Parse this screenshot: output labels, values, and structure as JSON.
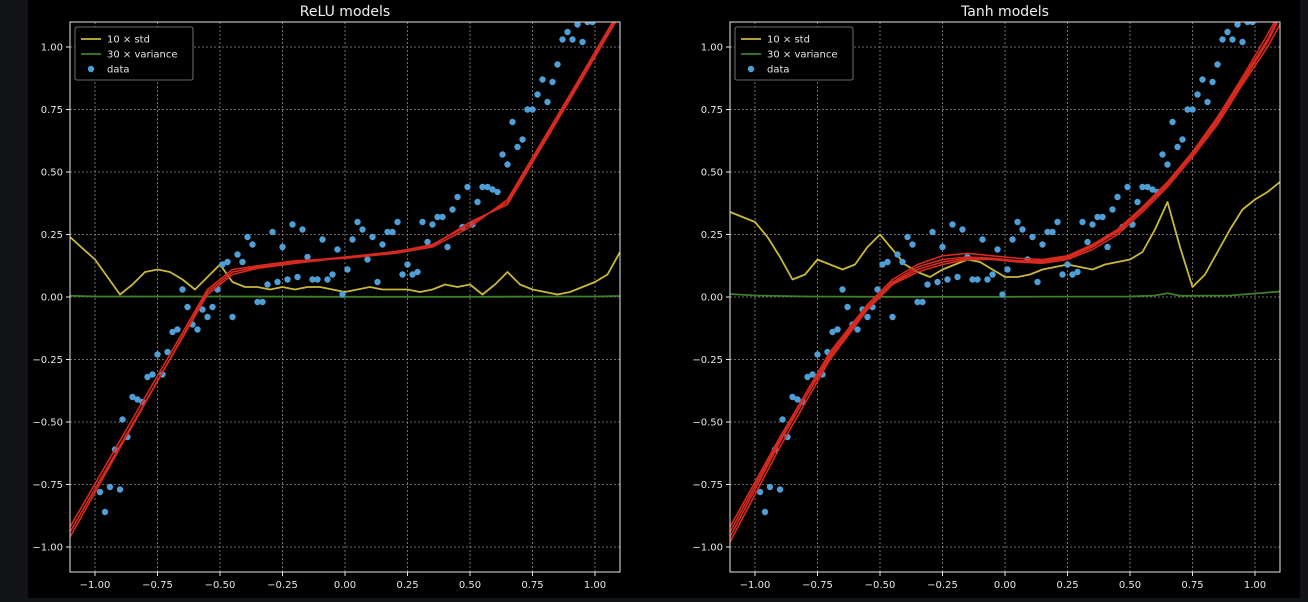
{
  "colors": {
    "background": "#000000",
    "grid": "#8c8c8c",
    "std": "#c9b83a",
    "variance": "#3f7f2a",
    "data": "#4f9ed6",
    "model": "#d62a20"
  },
  "legend": {
    "items": [
      {
        "label": "10 × std",
        "kind": "line",
        "color_key": "std"
      },
      {
        "label": "30 × variance",
        "kind": "line",
        "color_key": "variance"
      },
      {
        "label": "data",
        "kind": "marker",
        "color_key": "data"
      }
    ],
    "location": "upper-left"
  },
  "chart_data": [
    {
      "type": "line",
      "title": "ReLU models",
      "xlim": [
        -1.1,
        1.1
      ],
      "ylim": [
        -1.1,
        1.1
      ],
      "xticks": [
        -1.0,
        -0.75,
        -0.5,
        -0.25,
        0.0,
        0.25,
        0.5,
        0.75,
        1.0
      ],
      "xticklabels": [
        "−1.00",
        "−0.75",
        "−0.50",
        "−0.25",
        "0.00",
        "0.25",
        "0.50",
        "0.75",
        "1.00"
      ],
      "yticks": [
        -1.0,
        -0.75,
        -0.5,
        -0.25,
        0.0,
        0.25,
        0.5,
        0.75,
        1.0
      ],
      "yticklabels": [
        "−1.00",
        "−0.75",
        "−0.50",
        "−0.25",
        "0.00",
        "0.25",
        "0.50",
        "0.75",
        "1.00"
      ],
      "grid": true,
      "series": [
        {
          "name": "10 × std",
          "kind": "line",
          "color_key": "std",
          "x": [
            -1.1,
            -1.0,
            -0.95,
            -0.9,
            -0.85,
            -0.8,
            -0.75,
            -0.7,
            -0.65,
            -0.6,
            -0.55,
            -0.5,
            -0.45,
            -0.4,
            -0.35,
            -0.3,
            -0.25,
            -0.2,
            -0.15,
            -0.1,
            -0.05,
            0.0,
            0.05,
            0.1,
            0.15,
            0.2,
            0.25,
            0.3,
            0.35,
            0.4,
            0.45,
            0.5,
            0.55,
            0.6,
            0.65,
            0.7,
            0.75,
            0.8,
            0.85,
            0.9,
            0.95,
            1.0,
            1.05,
            1.1
          ],
          "y": [
            0.24,
            0.15,
            0.08,
            0.01,
            0.05,
            0.1,
            0.11,
            0.1,
            0.07,
            0.03,
            0.08,
            0.13,
            0.06,
            0.04,
            0.04,
            0.03,
            0.04,
            0.03,
            0.04,
            0.04,
            0.03,
            0.02,
            0.03,
            0.04,
            0.03,
            0.03,
            0.03,
            0.02,
            0.03,
            0.05,
            0.04,
            0.05,
            0.01,
            0.05,
            0.1,
            0.05,
            0.03,
            0.02,
            0.01,
            0.02,
            0.04,
            0.06,
            0.09,
            0.18
          ]
        },
        {
          "name": "30 × variance",
          "kind": "line",
          "color_key": "variance",
          "x": [
            -1.1,
            -1.0,
            -0.5,
            0.0,
            0.5,
            1.0,
            1.1
          ],
          "y": [
            0.005,
            0.002,
            0.002,
            0.001,
            0.001,
            0.002,
            0.004
          ]
        },
        {
          "name": "model 1",
          "kind": "model",
          "color_key": "model",
          "x": [
            -1.1,
            -0.55,
            -0.45,
            -0.35,
            -0.2,
            0.0,
            0.2,
            0.35,
            0.5,
            0.65,
            0.9,
            1.1
          ],
          "y": [
            -0.96,
            0.02,
            0.1,
            0.12,
            0.14,
            0.16,
            0.18,
            0.21,
            0.29,
            0.38,
            0.8,
            1.14
          ]
        },
        {
          "name": "model 2",
          "kind": "model",
          "color_key": "model",
          "x": [
            -1.1,
            -0.55,
            -0.45,
            -0.35,
            -0.2,
            0.0,
            0.2,
            0.35,
            0.5,
            0.65,
            0.9,
            1.1
          ],
          "y": [
            -0.92,
            0.03,
            0.11,
            0.125,
            0.145,
            0.155,
            0.175,
            0.2,
            0.28,
            0.39,
            0.81,
            1.15
          ]
        },
        {
          "name": "model 3",
          "kind": "model",
          "color_key": "model",
          "x": [
            -1.1,
            -0.55,
            -0.45,
            -0.35,
            -0.2,
            0.0,
            0.2,
            0.35,
            0.5,
            0.65,
            0.9,
            1.1
          ],
          "y": [
            -0.94,
            0.01,
            0.09,
            0.115,
            0.135,
            0.158,
            0.182,
            0.205,
            0.3,
            0.37,
            0.79,
            1.13
          ]
        },
        {
          "name": "data",
          "kind": "scatter",
          "color_key": "data",
          "x": [
            -0.98,
            -0.96,
            -0.94,
            -0.92,
            -0.9,
            -0.89,
            -0.87,
            -0.85,
            -0.83,
            -0.81,
            -0.79,
            -0.77,
            -0.75,
            -0.73,
            -0.71,
            -0.69,
            -0.67,
            -0.65,
            -0.63,
            -0.61,
            -0.59,
            -0.57,
            -0.55,
            -0.53,
            -0.51,
            -0.49,
            -0.47,
            -0.45,
            -0.43,
            -0.41,
            -0.39,
            -0.37,
            -0.35,
            -0.33,
            -0.31,
            -0.29,
            -0.27,
            -0.25,
            -0.23,
            -0.21,
            -0.19,
            -0.17,
            -0.15,
            -0.13,
            -0.11,
            -0.09,
            -0.07,
            -0.05,
            -0.03,
            -0.01,
            0.01,
            0.03,
            0.05,
            0.07,
            0.09,
            0.11,
            0.13,
            0.15,
            0.17,
            0.19,
            0.21,
            0.23,
            0.25,
            0.27,
            0.29,
            0.31,
            0.33,
            0.35,
            0.37,
            0.39,
            0.41,
            0.43,
            0.45,
            0.47,
            0.49,
            0.51,
            0.53,
            0.55,
            0.57,
            0.59,
            0.61,
            0.63,
            0.65,
            0.67,
            0.69,
            0.71,
            0.73,
            0.75,
            0.77,
            0.79,
            0.81,
            0.83,
            0.85,
            0.87,
            0.89,
            0.91,
            0.93,
            0.95,
            0.97,
            0.99
          ],
          "y": [
            -0.78,
            -0.86,
            -0.76,
            -0.61,
            -0.77,
            -0.49,
            -0.56,
            -0.4,
            -0.41,
            -0.42,
            -0.32,
            -0.31,
            -0.23,
            -0.31,
            -0.22,
            -0.14,
            -0.13,
            0.03,
            -0.04,
            -0.11,
            -0.13,
            -0.05,
            -0.08,
            -0.04,
            0.03,
            0.13,
            0.14,
            -0.08,
            0.17,
            0.14,
            0.24,
            0.21,
            -0.02,
            -0.02,
            0.05,
            0.26,
            0.06,
            0.2,
            0.07,
            0.29,
            0.08,
            0.27,
            0.16,
            0.07,
            0.07,
            0.23,
            0.07,
            0.09,
            0.19,
            0.01,
            0.11,
            0.23,
            0.3,
            0.27,
            0.15,
            0.24,
            0.06,
            0.21,
            0.26,
            0.26,
            0.3,
            0.09,
            0.13,
            0.09,
            0.1,
            0.3,
            0.22,
            0.29,
            0.32,
            0.32,
            0.2,
            0.35,
            0.4,
            0.28,
            0.44,
            0.29,
            0.38,
            0.44,
            0.44,
            0.43,
            0.42,
            0.57,
            0.53,
            0.7,
            0.6,
            0.63,
            0.75,
            0.75,
            0.81,
            0.87,
            0.78,
            0.86,
            0.93,
            1.03,
            1.06,
            1.03,
            1.09,
            1.02,
            1.1,
            1.1
          ]
        }
      ]
    },
    {
      "type": "line",
      "title": "Tanh models",
      "xlim": [
        -1.1,
        1.1
      ],
      "ylim": [
        -1.1,
        1.1
      ],
      "xticks": [
        -1.0,
        -0.75,
        -0.5,
        -0.25,
        0.0,
        0.25,
        0.5,
        0.75,
        1.0
      ],
      "xticklabels": [
        "−1.00",
        "−0.75",
        "−0.50",
        "−0.25",
        "0.00",
        "0.25",
        "0.50",
        "0.75",
        "1.00"
      ],
      "yticks": [
        -1.0,
        -0.75,
        -0.5,
        -0.25,
        0.0,
        0.25,
        0.5,
        0.75,
        1.0
      ],
      "yticklabels": [
        "−1.00",
        "−0.75",
        "−0.50",
        "−0.25",
        "0.00",
        "0.25",
        "0.50",
        "0.75",
        "1.00"
      ],
      "grid": true,
      "series": [
        {
          "name": "10 × std",
          "kind": "line",
          "color_key": "std",
          "x": [
            -1.1,
            -1.0,
            -0.95,
            -0.9,
            -0.85,
            -0.8,
            -0.75,
            -0.7,
            -0.65,
            -0.6,
            -0.55,
            -0.5,
            -0.45,
            -0.4,
            -0.35,
            -0.3,
            -0.25,
            -0.2,
            -0.15,
            -0.1,
            -0.05,
            0.0,
            0.05,
            0.1,
            0.15,
            0.2,
            0.25,
            0.3,
            0.35,
            0.4,
            0.45,
            0.5,
            0.55,
            0.6,
            0.65,
            0.7,
            0.75,
            0.8,
            0.85,
            0.9,
            0.95,
            1.0,
            1.05,
            1.1
          ],
          "y": [
            0.34,
            0.3,
            0.24,
            0.16,
            0.07,
            0.09,
            0.15,
            0.13,
            0.11,
            0.13,
            0.2,
            0.25,
            0.19,
            0.13,
            0.1,
            0.08,
            0.11,
            0.13,
            0.15,
            0.14,
            0.11,
            0.08,
            0.08,
            0.09,
            0.11,
            0.12,
            0.13,
            0.12,
            0.11,
            0.13,
            0.14,
            0.15,
            0.18,
            0.27,
            0.38,
            0.2,
            0.04,
            0.09,
            0.18,
            0.27,
            0.35,
            0.39,
            0.42,
            0.46
          ]
        },
        {
          "name": "30 × variance",
          "kind": "line",
          "color_key": "variance",
          "x": [
            -1.1,
            -1.0,
            -0.8,
            -0.5,
            0.0,
            0.5,
            0.6,
            0.65,
            0.7,
            0.9,
            1.1
          ],
          "y": [
            0.012,
            0.006,
            0.002,
            0.001,
            0.001,
            0.002,
            0.006,
            0.015,
            0.005,
            0.006,
            0.022
          ]
        },
        {
          "name": "model 1",
          "kind": "model",
          "color_key": "model",
          "x": [
            -1.1,
            -0.9,
            -0.7,
            -0.55,
            -0.45,
            -0.35,
            -0.25,
            -0.15,
            -0.05,
            0.05,
            0.15,
            0.25,
            0.35,
            0.45,
            0.55,
            0.65,
            0.75,
            0.85,
            0.95,
            1.05,
            1.1
          ],
          "y": [
            -0.96,
            -0.58,
            -0.23,
            -0.04,
            0.06,
            0.12,
            0.15,
            0.16,
            0.155,
            0.145,
            0.14,
            0.155,
            0.2,
            0.26,
            0.35,
            0.45,
            0.57,
            0.7,
            0.86,
            1.02,
            1.12
          ]
        },
        {
          "name": "model 2",
          "kind": "model",
          "color_key": "model",
          "x": [
            -1.1,
            -0.9,
            -0.7,
            -0.55,
            -0.45,
            -0.35,
            -0.25,
            -0.15,
            -0.05,
            0.05,
            0.15,
            0.25,
            0.35,
            0.45,
            0.55,
            0.65,
            0.75,
            0.85,
            0.95,
            1.05,
            1.1
          ],
          "y": [
            -0.92,
            -0.56,
            -0.22,
            -0.03,
            0.07,
            0.13,
            0.165,
            0.175,
            0.165,
            0.155,
            0.15,
            0.165,
            0.21,
            0.27,
            0.36,
            0.46,
            0.58,
            0.72,
            0.88,
            1.05,
            1.14
          ]
        },
        {
          "name": "model 3",
          "kind": "model",
          "color_key": "model",
          "x": [
            -1.1,
            -0.9,
            -0.7,
            -0.55,
            -0.45,
            -0.35,
            -0.25,
            -0.15,
            -0.05,
            0.05,
            0.15,
            0.25,
            0.35,
            0.45,
            0.55,
            0.65,
            0.75,
            0.85,
            0.95,
            1.05,
            1.1
          ],
          "y": [
            -0.98,
            -0.6,
            -0.25,
            -0.05,
            0.05,
            0.1,
            0.13,
            0.15,
            0.15,
            0.14,
            0.135,
            0.15,
            0.19,
            0.25,
            0.34,
            0.44,
            0.56,
            0.69,
            0.85,
            1.0,
            1.09
          ]
        },
        {
          "name": "model 4",
          "kind": "model",
          "color_key": "model",
          "x": [
            -1.1,
            -0.9,
            -0.7,
            -0.55,
            -0.45,
            -0.35,
            -0.25,
            -0.15,
            -0.05,
            0.05,
            0.15,
            0.25,
            0.35,
            0.45,
            0.55,
            0.65,
            0.75,
            0.85,
            0.95,
            1.05,
            1.1
          ],
          "y": [
            -0.94,
            -0.57,
            -0.24,
            -0.045,
            0.055,
            0.11,
            0.14,
            0.155,
            0.15,
            0.145,
            0.145,
            0.16,
            0.205,
            0.265,
            0.355,
            0.455,
            0.575,
            0.71,
            0.87,
            1.03,
            1.13
          ]
        },
        {
          "name": "data",
          "kind": "scatter",
          "color_key": "data",
          "x": [
            -0.98,
            -0.96,
            -0.94,
            -0.92,
            -0.9,
            -0.89,
            -0.87,
            -0.85,
            -0.83,
            -0.81,
            -0.79,
            -0.77,
            -0.75,
            -0.73,
            -0.71,
            -0.69,
            -0.67,
            -0.65,
            -0.63,
            -0.61,
            -0.59,
            -0.57,
            -0.55,
            -0.53,
            -0.51,
            -0.49,
            -0.47,
            -0.45,
            -0.43,
            -0.41,
            -0.39,
            -0.37,
            -0.35,
            -0.33,
            -0.31,
            -0.29,
            -0.27,
            -0.25,
            -0.23,
            -0.21,
            -0.19,
            -0.17,
            -0.15,
            -0.13,
            -0.11,
            -0.09,
            -0.07,
            -0.05,
            -0.03,
            -0.01,
            0.01,
            0.03,
            0.05,
            0.07,
            0.09,
            0.11,
            0.13,
            0.15,
            0.17,
            0.19,
            0.21,
            0.23,
            0.25,
            0.27,
            0.29,
            0.31,
            0.33,
            0.35,
            0.37,
            0.39,
            0.41,
            0.43,
            0.45,
            0.47,
            0.49,
            0.51,
            0.53,
            0.55,
            0.57,
            0.59,
            0.61,
            0.63,
            0.65,
            0.67,
            0.69,
            0.71,
            0.73,
            0.75,
            0.77,
            0.79,
            0.81,
            0.83,
            0.85,
            0.87,
            0.89,
            0.91,
            0.93,
            0.95,
            0.97,
            0.99
          ],
          "y": [
            -0.78,
            -0.86,
            -0.76,
            -0.61,
            -0.77,
            -0.49,
            -0.56,
            -0.4,
            -0.41,
            -0.42,
            -0.32,
            -0.31,
            -0.23,
            -0.31,
            -0.22,
            -0.14,
            -0.13,
            0.03,
            -0.04,
            -0.11,
            -0.13,
            -0.05,
            -0.08,
            -0.04,
            0.03,
            0.13,
            0.14,
            -0.08,
            0.17,
            0.14,
            0.24,
            0.21,
            -0.02,
            -0.02,
            0.05,
            0.26,
            0.06,
            0.2,
            0.07,
            0.29,
            0.08,
            0.27,
            0.16,
            0.07,
            0.07,
            0.23,
            0.07,
            0.09,
            0.19,
            0.01,
            0.11,
            0.23,
            0.3,
            0.27,
            0.15,
            0.24,
            0.06,
            0.21,
            0.26,
            0.26,
            0.3,
            0.09,
            0.13,
            0.09,
            0.1,
            0.3,
            0.22,
            0.29,
            0.32,
            0.32,
            0.2,
            0.35,
            0.4,
            0.28,
            0.44,
            0.29,
            0.38,
            0.44,
            0.44,
            0.43,
            0.42,
            0.57,
            0.53,
            0.7,
            0.6,
            0.63,
            0.75,
            0.75,
            0.81,
            0.87,
            0.78,
            0.86,
            0.93,
            1.03,
            1.06,
            1.03,
            1.09,
            1.02,
            1.1,
            1.1
          ]
        }
      ]
    }
  ]
}
